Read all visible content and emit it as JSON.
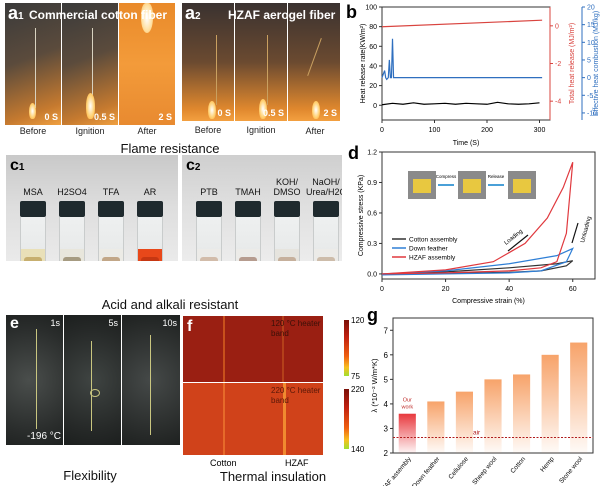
{
  "panel_a1": {
    "label": "a",
    "subscript": "1",
    "title": "Commercial cotton fiber",
    "frames": [
      {
        "time": "0 S",
        "caption": "Before"
      },
      {
        "time": "0.5 S",
        "caption": "Ignition"
      },
      {
        "time": "2 S",
        "caption": "After"
      }
    ]
  },
  "panel_a2": {
    "label": "a",
    "subscript": "2",
    "title": "HZAF aerogel fiber",
    "frames": [
      {
        "time": "0 S",
        "caption": "Before"
      },
      {
        "time": "0.5 S",
        "caption": "Ignition"
      },
      {
        "time": "2 S",
        "caption": "After"
      }
    ]
  },
  "section_captions": {
    "flame": "Flame resistance",
    "acid": "Acid and alkali resistant",
    "flex": "Flexibility",
    "thermal": "Thermal insulation"
  },
  "panel_c1": {
    "label": "c",
    "subscript": "1",
    "vials": [
      "MSA",
      "H2SO4",
      "TFA",
      "AR"
    ]
  },
  "panel_c2": {
    "label": "c",
    "subscript": "2",
    "vials": [
      "PTB",
      "TMAH",
      "KOH/ DMSO",
      "NaOH/ Urea/H2O"
    ]
  },
  "panel_e": {
    "label": "e",
    "times": [
      "1s",
      "5s",
      "10s"
    ],
    "temperature": "-196 °C"
  },
  "panel_f": {
    "label": "f",
    "top_band": "120 °C heater band",
    "bottom_band": "220 °C heater band",
    "top_scale": [
      "120",
      "75"
    ],
    "bottom_scale": [
      "220",
      "140"
    ],
    "columns": [
      "Cotton",
      "HZAF"
    ]
  },
  "chart_data": [
    {
      "id": "b",
      "type": "line",
      "label": "b",
      "xlabel": "Time (S)",
      "ylabel": "Heat release rate(KW/m²)",
      "ylabel_right1": "Total heat release (MJ/m²)",
      "ylabel_right2": "Effective heat combustion (MJ/kg)",
      "xlim": [
        0,
        320
      ],
      "ylim": [
        -15,
        100
      ],
      "y_right1_lim": [
        -5,
        1
      ],
      "y_right2_lim": [
        -12,
        20
      ],
      "xticks": [
        0,
        100,
        200,
        300
      ],
      "yticks": [
        0,
        20,
        40,
        60,
        80,
        100
      ],
      "y_right1_ticks": [
        0,
        -2,
        -4
      ],
      "y_right2_ticks": [
        20,
        15,
        10,
        5,
        0,
        -5,
        -10
      ],
      "series": [
        {
          "name": "Heat release rate",
          "axis": "left",
          "color": "#000000",
          "x": [
            0,
            20,
            40,
            60,
            80,
            100,
            120,
            140,
            160,
            180,
            200,
            220,
            240,
            260,
            280,
            300
          ],
          "y": [
            0.5,
            2,
            1,
            2.5,
            1,
            1.5,
            2,
            1,
            2,
            1.5,
            1,
            3,
            1.5,
            1,
            1.5,
            2.5
          ]
        },
        {
          "name": "Total heat release",
          "axis": "right1",
          "color": "#d9443f",
          "x": [
            0,
            305
          ],
          "y": [
            -0.05,
            0.3
          ]
        },
        {
          "name": "Effective heat combustion",
          "axis": "right2",
          "color": "#2f6fbf",
          "x": [
            0,
            5,
            7,
            9,
            12,
            14,
            16,
            18,
            20,
            22,
            305
          ],
          "y": [
            0,
            2,
            0,
            -0.5,
            0,
            5,
            0,
            0,
            11,
            0,
            0
          ]
        }
      ]
    },
    {
      "id": "d",
      "type": "line",
      "label": "d",
      "xlabel": "Compressive strain (%)",
      "ylabel": "Compressive stress (KPa)",
      "xlim": [
        0,
        67
      ],
      "ylim": [
        -0.05,
        1.2
      ],
      "xticks": [
        0,
        20,
        40,
        60
      ],
      "yticks": [
        0.0,
        0.3,
        0.6,
        0.9,
        1.2
      ],
      "legend": "bottom-left",
      "annotations": [
        "Loading",
        "Unloading",
        "Compress",
        "Release"
      ],
      "series": [
        {
          "name": "Cotton assembly",
          "color": "#333333",
          "x": [
            0,
            20,
            40,
            55,
            60,
            58,
            50,
            40,
            20,
            0
          ],
          "y": [
            0,
            0.02,
            0.06,
            0.1,
            0.13,
            0.08,
            0.03,
            0.015,
            0.005,
            0
          ]
        },
        {
          "name": "Down feather",
          "color": "#2f7fd6",
          "x": [
            0,
            20,
            40,
            55,
            60,
            58,
            50,
            40,
            20,
            0
          ],
          "y": [
            0,
            0.03,
            0.1,
            0.18,
            0.25,
            0.12,
            0.03,
            0.01,
            0.0,
            -0.01
          ]
        },
        {
          "name": "HZAF assembly",
          "color": "#e0393e",
          "x": [
            0,
            20,
            35,
            45,
            52,
            57,
            60,
            58,
            55,
            50,
            40,
            20,
            0
          ],
          "y": [
            0,
            0.04,
            0.12,
            0.3,
            0.55,
            0.85,
            1.1,
            0.4,
            0.12,
            0.06,
            0.03,
            0.01,
            0
          ]
        }
      ]
    },
    {
      "id": "g",
      "type": "bar",
      "label": "g",
      "ylabel": "λ (*10⁻² W/m*K)",
      "categories": [
        "HZAF assembly",
        "Down feather",
        "Cellulose",
        "Sheep wool",
        "Cotton",
        "Hemp",
        "Stone wool"
      ],
      "values": [
        3.6,
        4.1,
        4.5,
        5.0,
        5.2,
        6.0,
        6.5
      ],
      "ylim": [
        2,
        7.5
      ],
      "yticks": [
        2,
        3,
        4,
        5,
        6,
        7
      ],
      "reference_line": {
        "label": "air",
        "value": 2.63,
        "color": "#b01c1c"
      },
      "annotation": "Our work",
      "colors": {
        "highlight": "#e8383d",
        "default": "#f7a36a"
      }
    }
  ]
}
